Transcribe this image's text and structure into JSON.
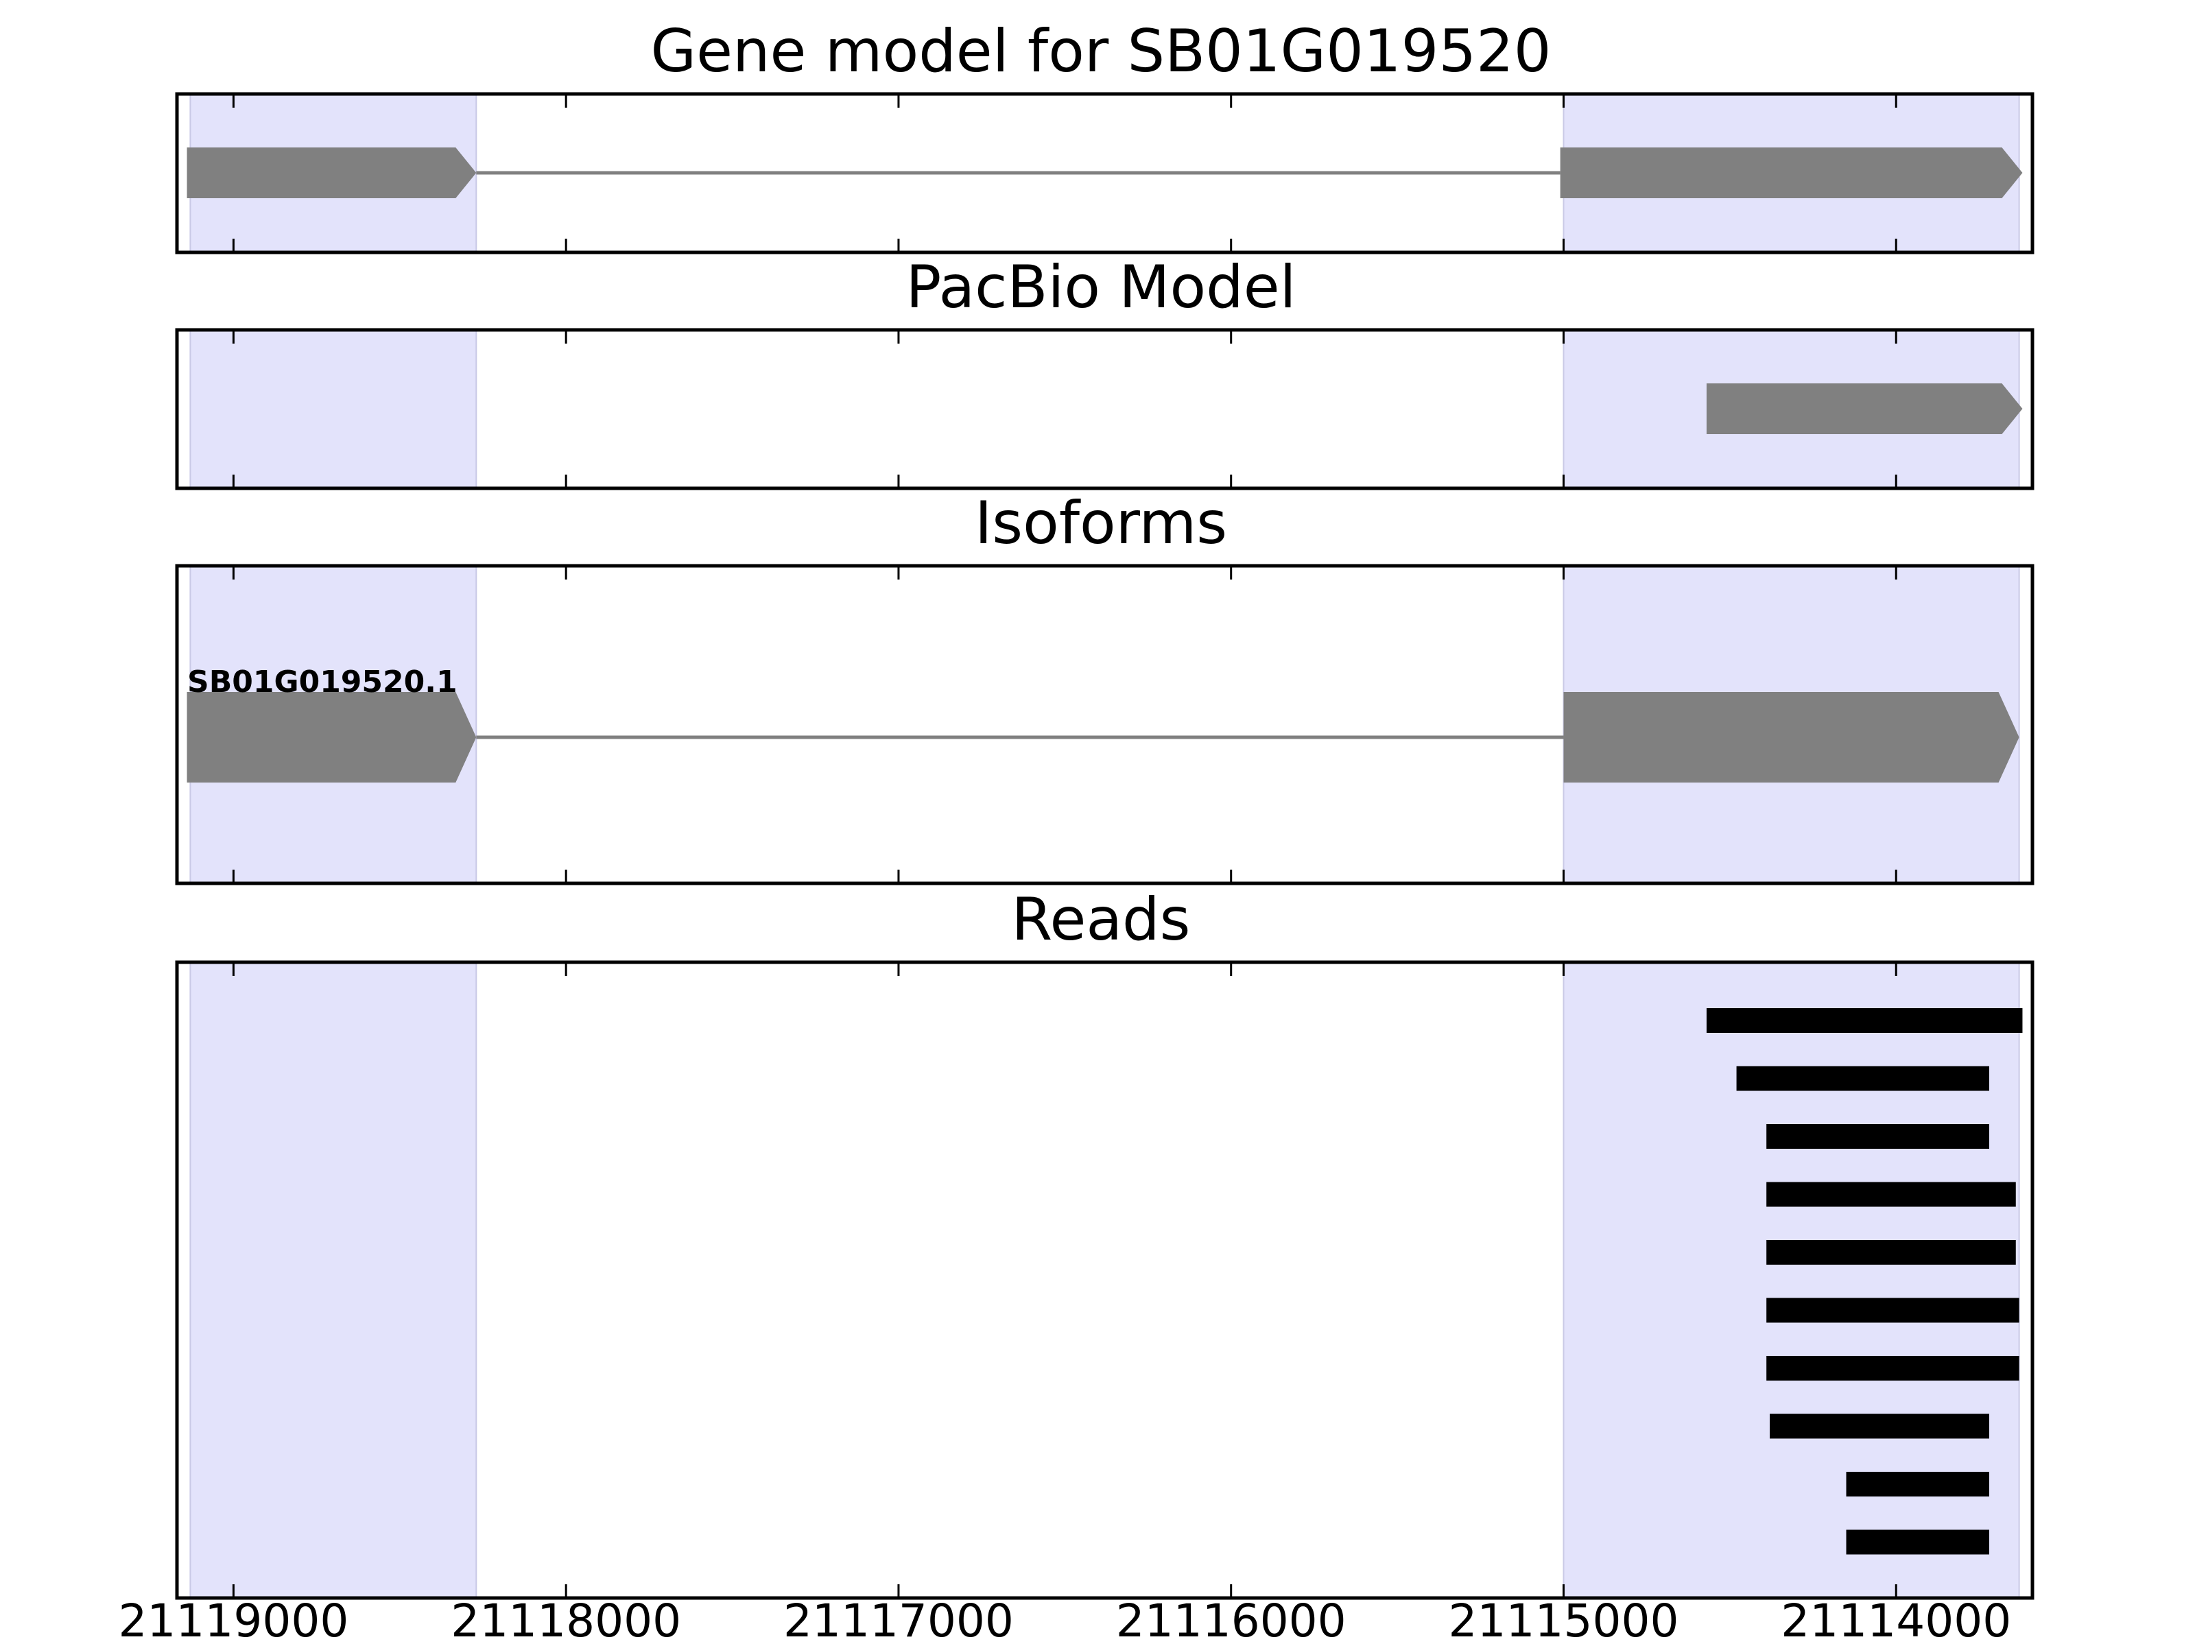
{
  "chart_data": {
    "type": "gene-track",
    "x_axis": {
      "reversed": true,
      "range": [
        21119170,
        21113590
      ],
      "ticks": [
        21119000,
        21118000,
        21117000,
        21116000,
        21115000,
        21114000
      ],
      "tick_labels": [
        "21119000",
        "21118000",
        "21117000",
        "21116000",
        "21115000",
        "21114000"
      ]
    },
    "highlight_color": "#e3e3fb",
    "feature_color": "#808080",
    "read_color": "#000000",
    "highlight_regions": [
      [
        21119130,
        21118270
      ],
      [
        21115000,
        21113630
      ]
    ],
    "panels": [
      {
        "title": "Gene model for SB01G019520",
        "features": [
          {
            "kind": "exon",
            "start": 21119140,
            "end": 21118270,
            "strand": "-"
          },
          {
            "kind": "intron",
            "start": 21118270,
            "end": 21115010
          },
          {
            "kind": "exon",
            "start": 21115010,
            "end": 21113620,
            "strand": "-"
          }
        ]
      },
      {
        "title": "PacBio Model",
        "features": [
          {
            "kind": "exon",
            "start": 21114570,
            "end": 21113620,
            "strand": "-"
          }
        ]
      },
      {
        "title": "Isoforms",
        "isoform_label": "SB01G019520.1",
        "features": [
          {
            "kind": "exon",
            "start": 21119140,
            "end": 21118270,
            "strand": "-"
          },
          {
            "kind": "intron",
            "start": 21118270,
            "end": 21115000
          },
          {
            "kind": "exon",
            "start": 21115000,
            "end": 21113630,
            "strand": "-"
          }
        ]
      },
      {
        "title": "Reads",
        "reads": [
          [
            21114570,
            21113620
          ],
          [
            21114480,
            21113720
          ],
          [
            21114390,
            21113720
          ],
          [
            21114390,
            21113640
          ],
          [
            21114390,
            21113640
          ],
          [
            21114390,
            21113630
          ],
          [
            21114390,
            21113630
          ],
          [
            21114380,
            21113720
          ],
          [
            21114150,
            21113720
          ],
          [
            21114150,
            21113720
          ]
        ]
      }
    ]
  }
}
